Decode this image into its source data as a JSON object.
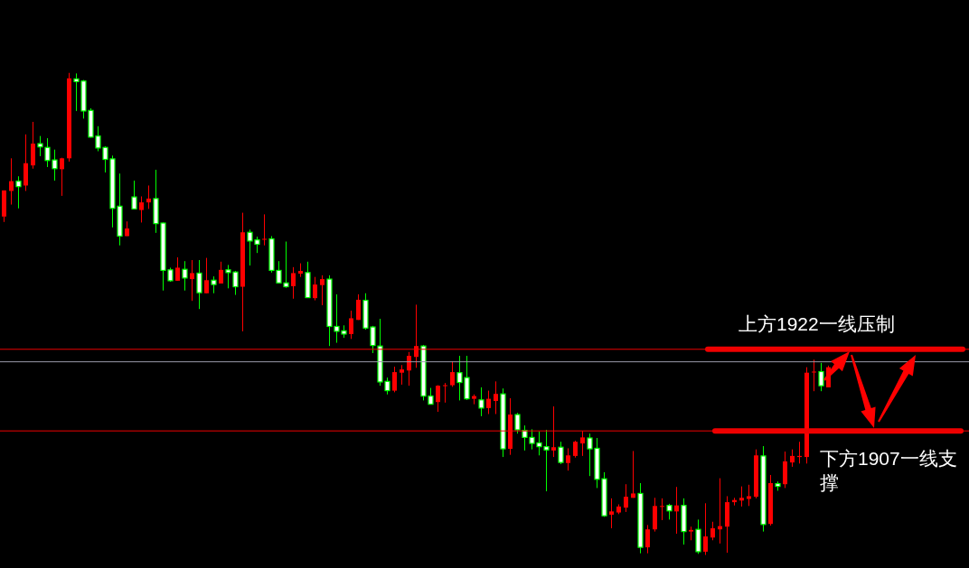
{
  "chart_data": {
    "type": "candlestick",
    "categories": [
      null,
      null,
      null,
      null,
      null,
      null,
      null,
      null,
      null,
      null,
      null,
      null,
      null,
      null,
      null,
      null,
      null,
      null,
      null,
      null,
      null,
      null,
      null,
      null,
      null,
      null,
      null,
      null,
      null,
      null,
      null,
      null,
      null,
      null,
      null,
      null,
      null,
      null,
      null,
      null,
      null,
      null,
      null,
      null,
      null,
      null,
      null,
      null,
      null,
      null,
      null,
      null,
      null,
      null,
      null,
      null,
      null,
      null,
      null,
      null,
      null,
      null,
      null,
      null,
      null,
      null,
      null,
      null,
      null,
      null,
      null,
      null,
      null,
      null,
      null,
      null,
      null,
      null,
      null,
      null,
      null,
      null,
      null,
      null,
      null,
      null,
      null,
      null,
      null,
      null,
      null,
      null,
      null,
      null,
      null,
      null,
      null,
      null,
      null,
      null,
      null,
      null,
      null,
      null,
      null,
      null,
      null,
      null,
      null,
      null,
      null,
      null,
      null,
      null,
      null
    ],
    "ohlc": [
      [
        1946.4,
        1951.2,
        1945.4,
        1951.2
      ],
      [
        1951.1,
        1957.1,
        1948.6,
        1952.9
      ],
      [
        1952.9,
        1953.8,
        1947.9,
        1951.9
      ],
      [
        1952.1,
        1961.5,
        1951.1,
        1956.2
      ],
      [
        1955.8,
        1963.8,
        1955.2,
        1959.8
      ],
      [
        1959.8,
        1961.2,
        1957.5,
        1959.2
      ],
      [
        1959.1,
        1960.8,
        1955.5,
        1956.7
      ],
      [
        1956.8,
        1958.7,
        1953.0,
        1955.2
      ],
      [
        1955.1,
        1957.2,
        1950.2,
        1957.1
      ],
      [
        1957.1,
        1972.8,
        1956.5,
        1971.8
      ],
      [
        1971.7,
        1972.7,
        1965.8,
        1971.2
      ],
      [
        1971.3,
        1971.5,
        1964.4,
        1965.8
      ],
      [
        1965.9,
        1966.3,
        1960.9,
        1961.0
      ],
      [
        1961.2,
        1963.0,
        1958.4,
        1959.0
      ],
      [
        1959.1,
        1959.3,
        1954.5,
        1956.9
      ],
      [
        1957.0,
        1957.6,
        1944.4,
        1947.9
      ],
      [
        1948.3,
        1954.3,
        1941.1,
        1942.8
      ],
      [
        1942.8,
        1945.5,
        1942.8,
        1944.2
      ],
      [
        1950.0,
        1953.0,
        1947.8,
        1947.8
      ],
      [
        1947.6,
        1950.1,
        1945.3,
        1949.0
      ],
      [
        1949.0,
        1952.1,
        1947.8,
        1949.7
      ],
      [
        1949.7,
        1955.0,
        1943.4,
        1945.1
      ],
      [
        1945.2,
        1945.3,
        1932.8,
        1936.5
      ],
      [
        1936.6,
        1937.0,
        1934.4,
        1934.6
      ],
      [
        1934.6,
        1938.9,
        1934.6,
        1937.0
      ],
      [
        1936.7,
        1938.2,
        1932.8,
        1935.1
      ],
      [
        1934.9,
        1938.4,
        1930.9,
        1936.0
      ],
      [
        1936.0,
        1938.4,
        1929.4,
        1932.4
      ],
      [
        1932.3,
        1938.8,
        1932.3,
        1934.7
      ],
      [
        1934.7,
        1935.4,
        1932.3,
        1933.9
      ],
      [
        1934.1,
        1938.1,
        1934.1,
        1936.6
      ],
      [
        1936.6,
        1937.5,
        1933.2,
        1936.1
      ],
      [
        1936.2,
        1936.4,
        1932.0,
        1933.5
      ],
      [
        1933.5,
        1947.1,
        1925.3,
        1943.5
      ],
      [
        1943.5,
        1944.0,
        1937.4,
        1941.9
      ],
      [
        1942.1,
        1942.7,
        1939.7,
        1941.3
      ],
      [
        1942.2,
        1946.8,
        1941.1,
        1942.3
      ],
      [
        1942.3,
        1942.8,
        1936.1,
        1936.5
      ],
      [
        1936.5,
        1938.2,
        1934.2,
        1934.2
      ],
      [
        1934.2,
        1941.8,
        1933.3,
        1933.5
      ],
      [
        1933.6,
        1937.1,
        1931.3,
        1936.0
      ],
      [
        1935.9,
        1937.8,
        1935.3,
        1936.4
      ],
      [
        1936.1,
        1938.1,
        1931.5,
        1931.5
      ],
      [
        1931.4,
        1935.3,
        1931.0,
        1933.9
      ],
      [
        1933.8,
        1935.6,
        1930.1,
        1934.9
      ],
      [
        1934.9,
        1935.6,
        1922.6,
        1926.2
      ],
      [
        1926.2,
        1932.1,
        1923.2,
        1925.3
      ],
      [
        1925.4,
        1926.4,
        1924.1,
        1924.8
      ],
      [
        1924.8,
        1929.1,
        1923.9,
        1927.7
      ],
      [
        1927.4,
        1932.1,
        1927.4,
        1931.1
      ],
      [
        1931.0,
        1932.3,
        1925.6,
        1925.9
      ],
      [
        1926.1,
        1926.3,
        1921.3,
        1922.7
      ],
      [
        1922.6,
        1927.6,
        1915.3,
        1916.0
      ],
      [
        1916.1,
        1916.8,
        1913.7,
        1914.4
      ],
      [
        1914.4,
        1918.8,
        1914.1,
        1917.8
      ],
      [
        1917.7,
        1919.1,
        1915.5,
        1918.3
      ],
      [
        1918.1,
        1921.5,
        1915.3,
        1920.8
      ],
      [
        1920.6,
        1930.2,
        1918.6,
        1922.6
      ],
      [
        1922.6,
        1922.8,
        1912.6,
        1913.4
      ],
      [
        1913.4,
        1914.9,
        1911.9,
        1911.9
      ],
      [
        1912.3,
        1915.4,
        1910.5,
        1915.3
      ],
      [
        1915.3,
        1915.8,
        1912.2,
        1915.4
      ],
      [
        1915.4,
        1919.8,
        1915.1,
        1917.8
      ],
      [
        1917.7,
        1920.8,
        1912.6,
        1915.9
      ],
      [
        1916.8,
        1920.8,
        1912.7,
        1912.9
      ],
      [
        1912.9,
        1913.7,
        1911.9,
        1913.4
      ],
      [
        1912.7,
        1915.0,
        1909.7,
        1911.2
      ],
      [
        1911.2,
        1914.4,
        1910.1,
        1912.9
      ],
      [
        1912.5,
        1916.1,
        1910.1,
        1913.8
      ],
      [
        1913.8,
        1914.8,
        1902.2,
        1903.7
      ],
      [
        1903.7,
        1913.0,
        1902.6,
        1910.0
      ],
      [
        1910.0,
        1910.3,
        1906.5,
        1907.2
      ],
      [
        1907.1,
        1908.0,
        1903.4,
        1905.8
      ],
      [
        1905.8,
        1907.3,
        1903.6,
        1904.7
      ],
      [
        1904.8,
        1906.9,
        1902.5,
        1904.1
      ],
      [
        1904.1,
        1907.2,
        1895.9,
        1903.5
      ],
      [
        1903.4,
        1911.5,
        1902.2,
        1904.0
      ],
      [
        1904.0,
        1905.0,
        1900.9,
        1901.2
      ],
      [
        1901.1,
        1903.8,
        1899.7,
        1902.5
      ],
      [
        1902.4,
        1905.2,
        1902.1,
        1905.0
      ],
      [
        1904.7,
        1907.0,
        1902.4,
        1905.8
      ],
      [
        1905.7,
        1906.5,
        1898.7,
        1903.7
      ],
      [
        1903.8,
        1905.7,
        1896.5,
        1898.1
      ],
      [
        1898.2,
        1899.4,
        1891.2,
        1891.4
      ],
      [
        1891.6,
        1894.6,
        1889.1,
        1892.2
      ],
      [
        1892.0,
        1893.5,
        1891.7,
        1893.1
      ],
      [
        1892.9,
        1897.2,
        1892.1,
        1894.9
      ],
      [
        1894.7,
        1903.3,
        1894.7,
        1895.5
      ],
      [
        1895.5,
        1897.4,
        1884.5,
        1885.6
      ],
      [
        1885.6,
        1889.7,
        1884.5,
        1888.9
      ],
      [
        1888.9,
        1894.7,
        1888.5,
        1893.2
      ],
      [
        1893.1,
        1894.6,
        1890.6,
        1893.2
      ],
      [
        1893.3,
        1893.6,
        1890.7,
        1892.3
      ],
      [
        1892.2,
        1896.7,
        1888.1,
        1893.3
      ],
      [
        1893.3,
        1894.6,
        1886.1,
        1888.5
      ],
      [
        1888.5,
        1889.4,
        1886.9,
        1888.8
      ],
      [
        1888.9,
        1890.7,
        1884.4,
        1884.8
      ],
      [
        1884.8,
        1893.7,
        1884.2,
        1887.6
      ],
      [
        1887.4,
        1890.3,
        1886.9,
        1889.1
      ],
      [
        1888.9,
        1898.3,
        1886.3,
        1889.5
      ],
      [
        1889.4,
        1895.0,
        1884.6,
        1893.9
      ],
      [
        1893.9,
        1894.7,
        1893.3,
        1894.3
      ],
      [
        1894.2,
        1896.8,
        1893.1,
        1894.7
      ],
      [
        1894.5,
        1897.1,
        1893.2,
        1895.0
      ],
      [
        1894.9,
        1903.6,
        1894.6,
        1902.5
      ],
      [
        1902.4,
        1904.2,
        1888.5,
        1889.8
      ],
      [
        1889.9,
        1898.9,
        1889.6,
        1897.4
      ],
      [
        1897.3,
        1897.7,
        1896.0,
        1896.8
      ],
      [
        1897.2,
        1903.2,
        1896.5,
        1901.4
      ],
      [
        1901.2,
        1903.6,
        1900.4,
        1902.4
      ],
      [
        1902.2,
        1905.0,
        1901.0,
        1902.4
      ],
      [
        1902.2,
        1918.7,
        1901.0,
        1917.7
      ],
      [
        1917.8,
        1920.1,
        1914.3,
        1917.9
      ],
      [
        1917.9,
        1919.5,
        1914.3,
        1915.3
      ],
      [
        1915.0,
        1919.0,
        1915.0,
        1918.7
      ]
    ],
    "colors": [
      "#ff0000",
      "#ff0000",
      "#00ff00",
      "#ff0000",
      "#ff0000",
      "#00ff00",
      "#00ff00",
      "#00ff00",
      "#ff0000",
      "#ff0000",
      "#00ff00",
      "#00ff00",
      "#00ff00",
      "#00ff00",
      "#00ff00",
      "#00ff00",
      "#00ff00",
      "#ff0000",
      "#00ff00",
      "#ff0000",
      "#ff0000",
      "#00ff00",
      "#00ff00",
      "#00ff00",
      "#ff0000",
      "#00ff00",
      "#ff0000",
      "#00ff00",
      "#ff0000",
      "#00ff00",
      "#ff0000",
      "#00ff00",
      "#00ff00",
      "#ff0000",
      "#00ff00",
      "#00ff00",
      "#ff0000",
      "#00ff00",
      "#00ff00",
      "#00ff00",
      "#ff0000",
      "#ff0000",
      "#00ff00",
      "#ff0000",
      "#ff0000",
      "#00ff00",
      "#00ff00",
      "#00ff00",
      "#ff0000",
      "#ff0000",
      "#00ff00",
      "#00ff00",
      "#00ff00",
      "#00ff00",
      "#ff0000",
      "#ff0000",
      "#ff0000",
      "#ff0000",
      "#00ff00",
      "#00ff00",
      "#ff0000",
      "#ff0000",
      "#ff0000",
      "#00ff00",
      "#00ff00",
      "#ff0000",
      "#00ff00",
      "#ff0000",
      "#ff0000",
      "#00ff00",
      "#ff0000",
      "#00ff00",
      "#00ff00",
      "#00ff00",
      "#00ff00",
      "#00ff00",
      "#ff0000",
      "#00ff00",
      "#ff0000",
      "#ff0000",
      "#ff0000",
      "#00ff00",
      "#00ff00",
      "#00ff00",
      "#ff0000",
      "#ff0000",
      "#ff0000",
      "#ff0000",
      "#00ff00",
      "#ff0000",
      "#ff0000",
      "#ff0000",
      "#00ff00",
      "#ff0000",
      "#00ff00",
      "#ff0000",
      "#00ff00",
      "#ff0000",
      "#ff0000",
      "#ff0000",
      "#ff0000",
      "#ff0000",
      "#ff0000",
      "#ff0000",
      "#ff0000",
      "#00ff00",
      "#ff0000",
      "#00ff00",
      "#ff0000",
      "#ff0000",
      "#ff0000",
      "#ff0000",
      "#ff0000",
      "#00ff00",
      "#ff0000"
    ],
    "ylim": [
      1881.8,
      1986.2
    ],
    "tick_labels": false,
    "ref_lines": [
      {
        "axis": "y",
        "value": 1922,
        "label": "上方1922一线压制",
        "color": "#ee0000"
      },
      {
        "axis": "y",
        "value": 1907,
        "label": "下方1907一线支撑",
        "color": "#ee0000"
      },
      {
        "axis": "y",
        "value": 1919.7,
        "color": "#9a9aaa"
      }
    ]
  }
}
